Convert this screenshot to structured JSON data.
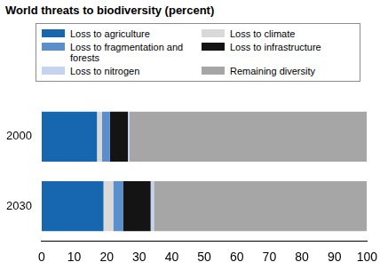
{
  "chart_data": {
    "type": "bar",
    "orientation": "horizontal",
    "stacked": true,
    "title": "World threats to biodiversity (percent)",
    "categories": [
      "2000",
      "2030"
    ],
    "series": [
      {
        "name": "Loss to agriculture",
        "color": "#1666b0",
        "values": [
          17,
          19
        ]
      },
      {
        "name": "Loss to climate",
        "color": "#d9d9d9",
        "values": [
          1.5,
          3
        ]
      },
      {
        "name": "Loss to fragmentation and forests",
        "color": "#5a8fcb",
        "values": [
          2.5,
          3
        ]
      },
      {
        "name": "Loss to infrastructure",
        "color": "#141414",
        "values": [
          5.5,
          8.5
        ]
      },
      {
        "name": "Loss to nitrogen",
        "color": "#c4d3ef",
        "values": [
          0.5,
          1
        ]
      },
      {
        "name": "Remaining diversity",
        "color": "#a6a6a6",
        "values": [
          73,
          65.5
        ]
      }
    ],
    "xlim": [
      0,
      100
    ],
    "xticks": [
      0,
      10,
      20,
      30,
      40,
      50,
      60,
      70,
      80,
      90,
      100
    ],
    "grid": false,
    "legend": "top"
  }
}
